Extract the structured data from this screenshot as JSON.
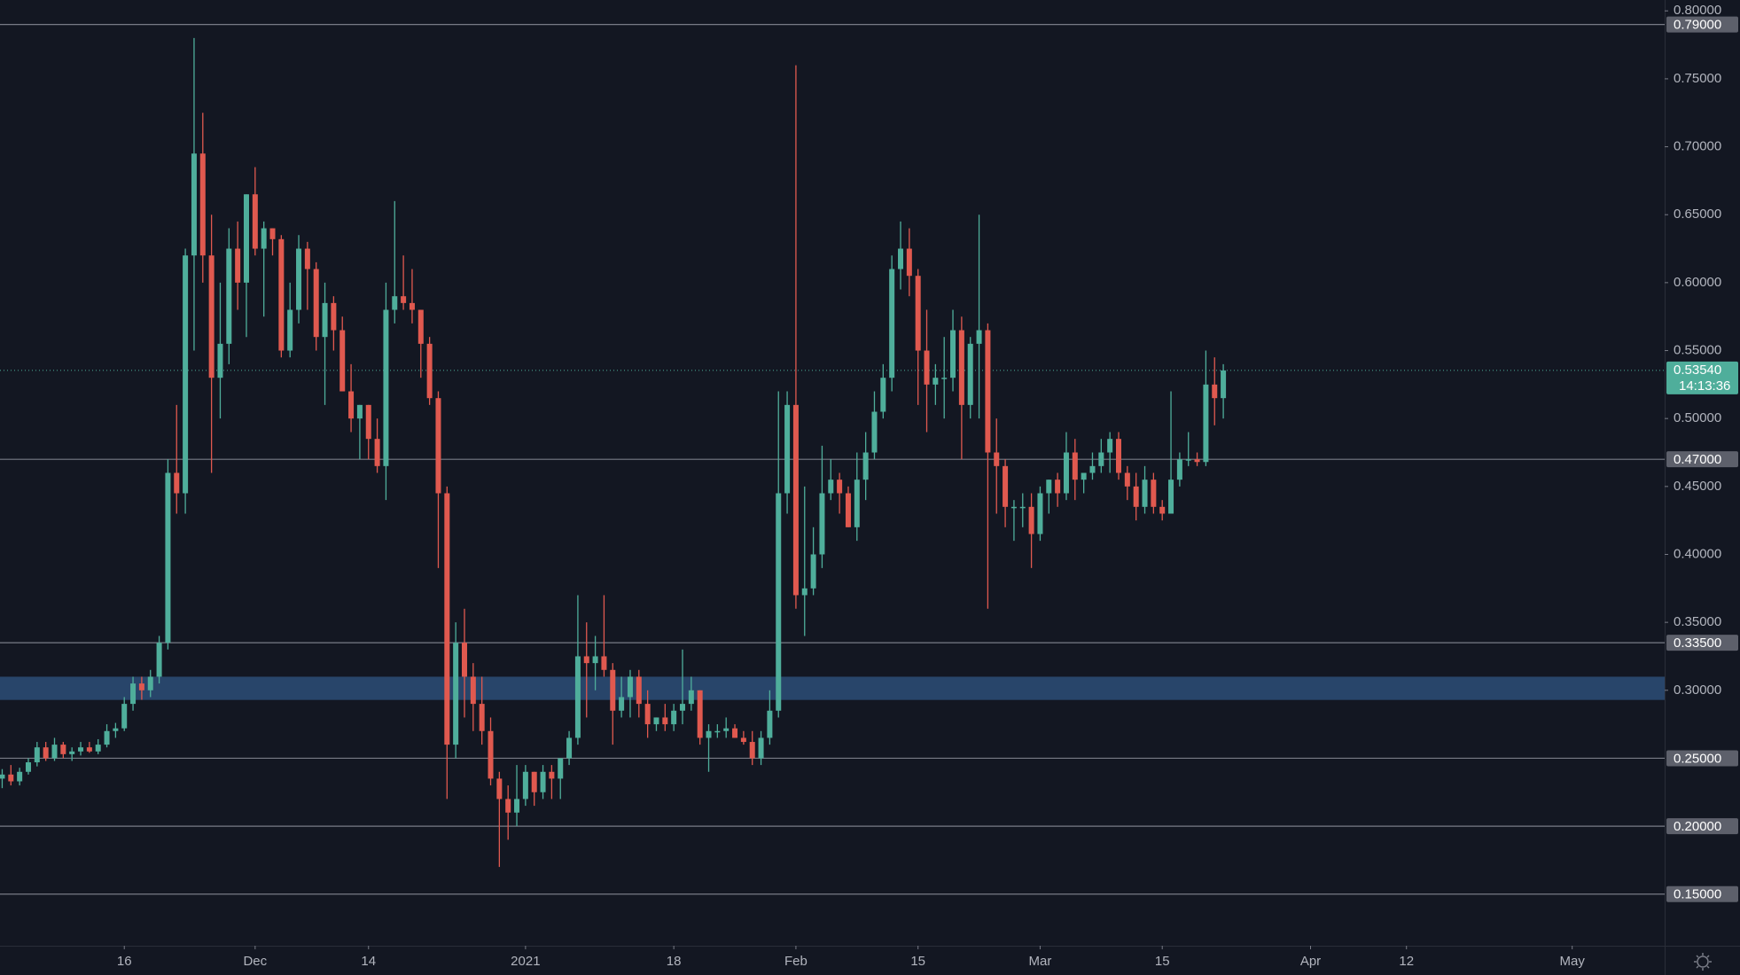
{
  "chart_data": {
    "type": "candlestick",
    "up_color": "#4fae9b",
    "down_color": "#e0594f",
    "open": [
      0.235,
      0.238,
      0.233,
      0.24,
      0.247,
      0.258,
      0.25,
      0.26,
      0.253,
      0.255,
      0.258,
      0.255,
      0.26,
      0.27,
      0.272,
      0.29,
      0.305,
      0.3,
      0.31,
      0.335,
      0.46,
      0.445,
      0.62,
      0.695,
      0.62,
      0.53,
      0.555,
      0.625,
      0.6,
      0.665,
      0.625,
      0.64,
      0.632,
      0.55,
      0.58,
      0.625,
      0.61,
      0.56,
      0.585,
      0.565,
      0.52,
      0.5,
      0.51,
      0.485,
      0.465,
      0.58,
      0.59,
      0.585,
      0.58,
      0.555,
      0.515,
      0.445,
      0.26,
      0.335,
      0.31,
      0.29,
      0.27,
      0.235,
      0.22,
      0.21,
      0.22,
      0.24,
      0.225,
      0.24,
      0.235,
      0.25,
      0.265,
      0.325,
      0.32,
      0.325,
      0.315,
      0.285,
      0.295,
      0.31,
      0.29,
      0.275,
      0.28,
      0.275,
      0.285,
      0.29,
      0.3,
      0.265,
      0.27,
      0.27,
      0.272,
      0.265,
      0.262,
      0.25,
      0.265,
      0.285,
      0.445,
      0.51,
      0.37,
      0.375,
      0.4,
      0.445,
      0.455,
      0.445,
      0.42,
      0.455,
      0.475,
      0.505,
      0.53,
      0.61,
      0.625,
      0.605,
      0.55,
      0.525,
      0.53,
      0.53,
      0.565,
      0.51,
      0.555,
      0.565,
      0.475,
      0.465,
      0.435,
      0.435,
      0.435,
      0.415,
      0.445,
      0.455,
      0.445,
      0.475,
      0.455,
      0.46,
      0.465,
      0.475,
      0.485,
      0.46,
      0.45,
      0.435,
      0.455,
      0.435,
      0.43,
      0.455,
      0.47,
      0.47,
      0.468,
      0.525,
      0.515
    ],
    "high": [
      0.242,
      0.245,
      0.243,
      0.25,
      0.262,
      0.262,
      0.265,
      0.262,
      0.258,
      0.262,
      0.262,
      0.264,
      0.275,
      0.276,
      0.295,
      0.31,
      0.31,
      0.315,
      0.34,
      0.47,
      0.51,
      0.625,
      0.78,
      0.725,
      0.65,
      0.6,
      0.64,
      0.645,
      0.665,
      0.685,
      0.645,
      0.64,
      0.635,
      0.6,
      0.635,
      0.63,
      0.615,
      0.6,
      0.59,
      0.575,
      0.54,
      0.51,
      0.51,
      0.5,
      0.6,
      0.66,
      0.62,
      0.61,
      0.58,
      0.56,
      0.52,
      0.45,
      0.35,
      0.36,
      0.32,
      0.31,
      0.28,
      0.24,
      0.23,
      0.245,
      0.245,
      0.24,
      0.245,
      0.245,
      0.25,
      0.27,
      0.37,
      0.35,
      0.34,
      0.37,
      0.32,
      0.31,
      0.315,
      0.315,
      0.3,
      0.28,
      0.29,
      0.29,
      0.33,
      0.31,
      0.3,
      0.275,
      0.275,
      0.28,
      0.275,
      0.27,
      0.27,
      0.27,
      0.3,
      0.52,
      0.52,
      0.76,
      0.45,
      0.42,
      0.48,
      0.47,
      0.46,
      0.45,
      0.475,
      0.49,
      0.52,
      0.54,
      0.62,
      0.645,
      0.64,
      0.61,
      0.58,
      0.54,
      0.56,
      0.58,
      0.575,
      0.56,
      0.65,
      0.57,
      0.5,
      0.47,
      0.44,
      0.445,
      0.445,
      0.45,
      0.455,
      0.46,
      0.49,
      0.485,
      0.46,
      0.475,
      0.485,
      0.49,
      0.49,
      0.465,
      0.46,
      0.465,
      0.46,
      0.44,
      0.52,
      0.475,
      0.49,
      0.475,
      0.55,
      0.545,
      0.54
    ],
    "low": [
      0.228,
      0.23,
      0.23,
      0.238,
      0.244,
      0.248,
      0.248,
      0.25,
      0.248,
      0.252,
      0.254,
      0.253,
      0.258,
      0.265,
      0.27,
      0.285,
      0.293,
      0.295,
      0.305,
      0.33,
      0.43,
      0.43,
      0.55,
      0.6,
      0.46,
      0.5,
      0.54,
      0.58,
      0.56,
      0.62,
      0.575,
      0.62,
      0.545,
      0.545,
      0.57,
      0.58,
      0.55,
      0.51,
      0.55,
      0.52,
      0.49,
      0.47,
      0.47,
      0.46,
      0.44,
      0.57,
      0.58,
      0.57,
      0.53,
      0.51,
      0.39,
      0.22,
      0.25,
      0.28,
      0.27,
      0.26,
      0.23,
      0.17,
      0.19,
      0.2,
      0.215,
      0.215,
      0.22,
      0.22,
      0.22,
      0.245,
      0.26,
      0.28,
      0.3,
      0.31,
      0.26,
      0.28,
      0.28,
      0.28,
      0.265,
      0.27,
      0.27,
      0.27,
      0.275,
      0.285,
      0.26,
      0.24,
      0.265,
      0.265,
      0.265,
      0.26,
      0.245,
      0.245,
      0.26,
      0.28,
      0.43,
      0.36,
      0.34,
      0.37,
      0.39,
      0.44,
      0.43,
      0.42,
      0.41,
      0.44,
      0.47,
      0.5,
      0.52,
      0.595,
      0.59,
      0.51,
      0.49,
      0.51,
      0.5,
      0.52,
      0.47,
      0.5,
      0.5,
      0.36,
      0.43,
      0.42,
      0.41,
      0.42,
      0.39,
      0.41,
      0.43,
      0.435,
      0.44,
      0.44,
      0.445,
      0.455,
      0.46,
      0.46,
      0.455,
      0.44,
      0.425,
      0.43,
      0.43,
      0.425,
      0.43,
      0.45,
      0.465,
      0.465,
      0.465,
      0.495,
      0.5
    ],
    "close": [
      0.238,
      0.233,
      0.24,
      0.247,
      0.258,
      0.25,
      0.26,
      0.253,
      0.255,
      0.258,
      0.255,
      0.26,
      0.27,
      0.272,
      0.29,
      0.305,
      0.3,
      0.31,
      0.335,
      0.46,
      0.445,
      0.62,
      0.695,
      0.62,
      0.53,
      0.555,
      0.625,
      0.6,
      0.665,
      0.625,
      0.64,
      0.632,
      0.55,
      0.58,
      0.625,
      0.61,
      0.56,
      0.585,
      0.565,
      0.52,
      0.5,
      0.51,
      0.485,
      0.465,
      0.58,
      0.59,
      0.585,
      0.58,
      0.555,
      0.515,
      0.445,
      0.26,
      0.335,
      0.31,
      0.29,
      0.27,
      0.235,
      0.22,
      0.21,
      0.22,
      0.24,
      0.225,
      0.24,
      0.235,
      0.25,
      0.265,
      0.325,
      0.32,
      0.325,
      0.315,
      0.285,
      0.295,
      0.31,
      0.29,
      0.275,
      0.28,
      0.275,
      0.285,
      0.29,
      0.3,
      0.265,
      0.27,
      0.27,
      0.272,
      0.265,
      0.262,
      0.25,
      0.265,
      0.285,
      0.445,
      0.51,
      0.37,
      0.375,
      0.4,
      0.445,
      0.455,
      0.445,
      0.42,
      0.455,
      0.475,
      0.505,
      0.53,
      0.61,
      0.625,
      0.605,
      0.55,
      0.525,
      0.53,
      0.53,
      0.565,
      0.51,
      0.555,
      0.565,
      0.475,
      0.465,
      0.435,
      0.435,
      0.435,
      0.415,
      0.445,
      0.455,
      0.445,
      0.475,
      0.455,
      0.46,
      0.465,
      0.475,
      0.485,
      0.46,
      0.45,
      0.435,
      0.455,
      0.435,
      0.43,
      0.455,
      0.47,
      0.47,
      0.468,
      0.525,
      0.515,
      0.5354
    ],
    "xlim": [
      -0.25,
      190.6
    ],
    "xticks": [
      {
        "value": 14,
        "label": "16"
      },
      {
        "value": 29,
        "label": "Dec"
      },
      {
        "value": 42,
        "label": "14"
      },
      {
        "value": 60,
        "label": "2021"
      },
      {
        "value": 77,
        "label": "18"
      },
      {
        "value": 91,
        "label": "Feb"
      },
      {
        "value": 105,
        "label": "15"
      },
      {
        "value": 119,
        "label": "Mar"
      },
      {
        "value": 133,
        "label": "15"
      },
      {
        "value": 150,
        "label": "Apr"
      },
      {
        "value": 161,
        "label": "12"
      },
      {
        "value": 180,
        "label": "May"
      }
    ],
    "ylim": [
      0.112,
      0.808
    ],
    "yticks": [
      {
        "value": 0.8,
        "label": "0.80000"
      },
      {
        "value": 0.75,
        "label": "0.75000"
      },
      {
        "value": 0.7,
        "label": "0.70000"
      },
      {
        "value": 0.65,
        "label": "0.65000"
      },
      {
        "value": 0.6,
        "label": "0.60000"
      },
      {
        "value": 0.55,
        "label": "0.55000"
      },
      {
        "value": 0.5,
        "label": "0.50000"
      },
      {
        "value": 0.45,
        "label": "0.45000"
      },
      {
        "value": 0.4,
        "label": "0.40000"
      },
      {
        "value": 0.35,
        "label": "0.35000"
      },
      {
        "value": 0.3,
        "label": "0.30000"
      }
    ],
    "levels": [
      {
        "value": 0.79,
        "label": "0.79000"
      },
      {
        "value": 0.47,
        "label": "0.47000"
      },
      {
        "value": 0.335,
        "label": "0.33500"
      },
      {
        "value": 0.25,
        "label": "0.25000"
      },
      {
        "value": 0.2,
        "label": "0.20000"
      },
      {
        "value": 0.15,
        "label": "0.15000"
      }
    ],
    "zone": [
      0.2929,
      0.31
    ],
    "zone_color": "#2b4a72",
    "current_price": {
      "value": 0.5354,
      "label": "0.53540"
    },
    "countdown": "14:13:36"
  }
}
